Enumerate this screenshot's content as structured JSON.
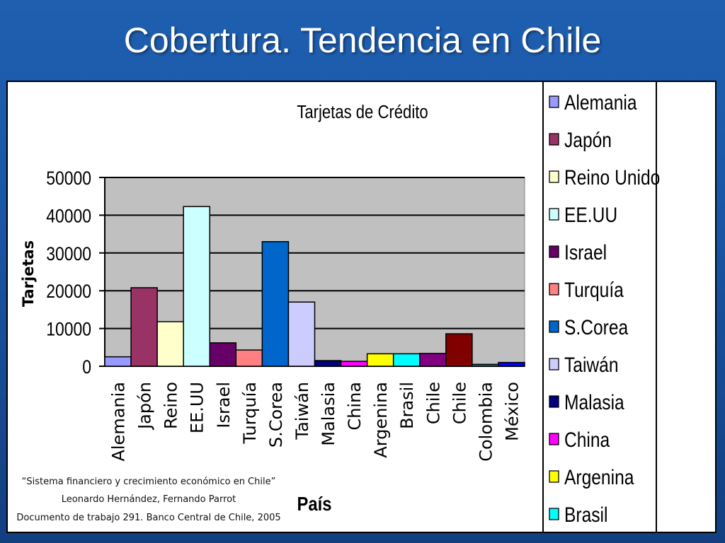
{
  "slide": {
    "title": "Cobertura. Tendencia en Chile"
  },
  "citation": {
    "line1": "“Sistema financiero y crecimiento económico en Chile”",
    "line2": "Leonardo Hernández, Fernando Parrot",
    "line3": "Documento de trabajo 291. Banco Central de Chile, 2005"
  },
  "chart_data": {
    "type": "bar",
    "title": "Tarjetas de Crédito",
    "xlabel": "País",
    "ylabel": "Tarjetas",
    "ylim": [
      0,
      50000
    ],
    "yticks": [
      0,
      10000,
      20000,
      30000,
      40000,
      50000
    ],
    "grid": true,
    "legend_position": "right",
    "categories": [
      "Alemania",
      "Japón",
      "Reino",
      "EE.UU",
      "Israel",
      "Turquía",
      "S.Corea",
      "Taiwán",
      "Malasia",
      "China",
      "Argenina",
      "Brasil",
      "Chile",
      "Chile",
      "Colombia",
      "México"
    ],
    "values": [
      2500,
      20800,
      11800,
      42300,
      6200,
      4300,
      33000,
      17000,
      1500,
      1300,
      3300,
      3300,
      3400,
      8600,
      500,
      1000
    ],
    "colors": [
      "#9999ff",
      "#993366",
      "#ffffcc",
      "#ccffff",
      "#660066",
      "#ff8080",
      "#0066cc",
      "#ccccff",
      "#000080",
      "#ff00ff",
      "#ffff00",
      "#00ffff",
      "#800080",
      "#800000",
      "#008080",
      "#0000ff"
    ],
    "legend": [
      {
        "label": "Alemania",
        "color": "#9999ff"
      },
      {
        "label": "Japón",
        "color": "#993366"
      },
      {
        "label": "Reino Unido",
        "color": "#ffffcc"
      },
      {
        "label": "EE.UU",
        "color": "#ccffff"
      },
      {
        "label": "Israel",
        "color": "#660066"
      },
      {
        "label": "Turquía",
        "color": "#ff8080"
      },
      {
        "label": "S.Corea",
        "color": "#0066cc"
      },
      {
        "label": "Taiwán",
        "color": "#ccccff"
      },
      {
        "label": "Malasia",
        "color": "#000080"
      },
      {
        "label": "China",
        "color": "#ff00ff"
      },
      {
        "label": "Argenina",
        "color": "#ffff00"
      },
      {
        "label": "Brasil",
        "color": "#00ffff"
      }
    ]
  }
}
